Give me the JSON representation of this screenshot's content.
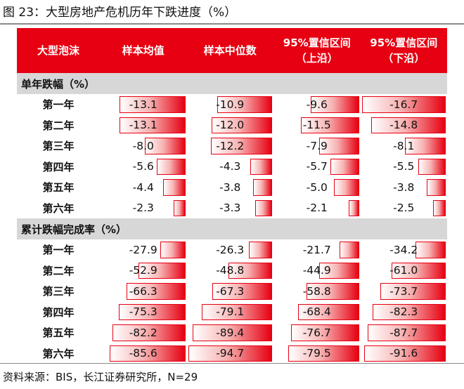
{
  "title": "图 23：大型房地产危机历年下跌进度（%）",
  "header": {
    "col0": "大型泡沫",
    "col1": "样本均值",
    "col2": "样本中位数",
    "col3_line1": "95%置信区间",
    "col3_line2": "（上沿）",
    "col4_line1": "95%置信区间",
    "col4_line2": "（下沿）"
  },
  "accent_color": "#e60012",
  "section_bg": "#d7d7d7",
  "sections": [
    {
      "title": "单年跌幅（%）",
      "max_abs": 16.7,
      "rows": [
        {
          "label": "第一年",
          "values": [
            "-13.1",
            "-10.9",
            "-9.6",
            "-16.7"
          ]
        },
        {
          "label": "第二年",
          "values": [
            "-13.1",
            "-12.0",
            "-11.5",
            "-14.8"
          ]
        },
        {
          "label": "第三年",
          "values": [
            "-8.0",
            "-12.2",
            "-7.9",
            "-8.1"
          ]
        },
        {
          "label": "第四年",
          "values": [
            "-5.6",
            "-4.3",
            "-5.7",
            "-5.5"
          ]
        },
        {
          "label": "第五年",
          "values": [
            "-4.4",
            "-3.8",
            "-5.0",
            "-3.8"
          ]
        },
        {
          "label": "第六年",
          "values": [
            "-2.3",
            "-3.3",
            "-2.1",
            "-2.5"
          ]
        }
      ]
    },
    {
      "title": "累计跌幅完成率（%）",
      "max_abs": 94.7,
      "rows": [
        {
          "label": "第一年",
          "values": [
            "-27.9",
            "-26.3",
            "-21.7",
            "-34.2"
          ]
        },
        {
          "label": "第二年",
          "values": [
            "-52.9",
            "-48.8",
            "-44.9",
            "-61.0"
          ]
        },
        {
          "label": "第三年",
          "values": [
            "-66.3",
            "-67.3",
            "-58.8",
            "-73.7"
          ]
        },
        {
          "label": "第四年",
          "values": [
            "-75.3",
            "-79.1",
            "-68.4",
            "-82.3"
          ]
        },
        {
          "label": "第五年",
          "values": [
            "-82.2",
            "-89.4",
            "-76.7",
            "-87.7"
          ]
        },
        {
          "label": "第六年",
          "values": [
            "-85.6",
            "-94.7",
            "-79.5",
            "-91.6"
          ]
        }
      ]
    }
  ],
  "source": "资料来源：BIS，长江证券研究所，N=29"
}
